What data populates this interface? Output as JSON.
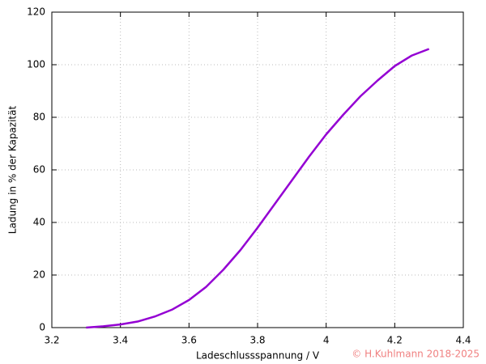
{
  "chart_data": {
    "type": "line",
    "xlabel": "Ladeschlussspannung / V",
    "ylabel": "Ladung in % der Kapazität",
    "annotation": "© H.Kuhlmann 2018-2025",
    "x": [
      3.3,
      3.35,
      3.4,
      3.45,
      3.5,
      3.55,
      3.6,
      3.65,
      3.7,
      3.75,
      3.8,
      3.85,
      3.9,
      3.95,
      4.0,
      4.05,
      4.1,
      4.15,
      4.2,
      4.25,
      4.3
    ],
    "series": [
      {
        "color": "#9400d3",
        "values": [
          0,
          0.5,
          1.2,
          2.3,
          4.2,
          6.8,
          10.5,
          15.5,
          22,
          29.5,
          38,
          47,
          56,
          65,
          73.5,
          81,
          88,
          94,
          99.5,
          103.5,
          106
        ]
      }
    ],
    "xlim": [
      3.2,
      4.4
    ],
    "xticks": [
      3.2,
      3.4,
      3.6,
      3.8,
      4,
      4.2,
      4.4
    ],
    "ylim": [
      0,
      120
    ],
    "yticks": [
      0,
      20,
      40,
      60,
      80,
      100,
      120
    ],
    "grid": true
  }
}
